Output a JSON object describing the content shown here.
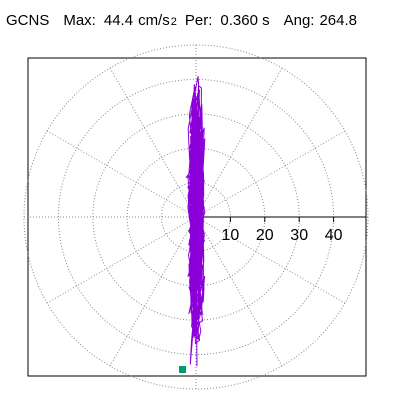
{
  "header": {
    "station": "GCNS",
    "max_label": "Max:",
    "max_value": "44.4",
    "max_unit": "cm/s",
    "max_unit_exp": "2",
    "per_label": "Per:",
    "per_value": "0.360 s",
    "ang_label": "Ang:",
    "ang_value": "264.8"
  },
  "chart_data": {
    "type": "scatter",
    "title": "",
    "polar_grid": true,
    "radial_rings": [
      10,
      20,
      30,
      40,
      50
    ],
    "tick_labels": [
      "10",
      "20",
      "30",
      "40"
    ],
    "max_magnitude": 44.4,
    "angle_deg": 264.8,
    "grid": true,
    "colors": {
      "trace": "#8b00d9",
      "end_marker": "#009a73",
      "grid": "#888888",
      "axis": "#000000"
    }
  }
}
